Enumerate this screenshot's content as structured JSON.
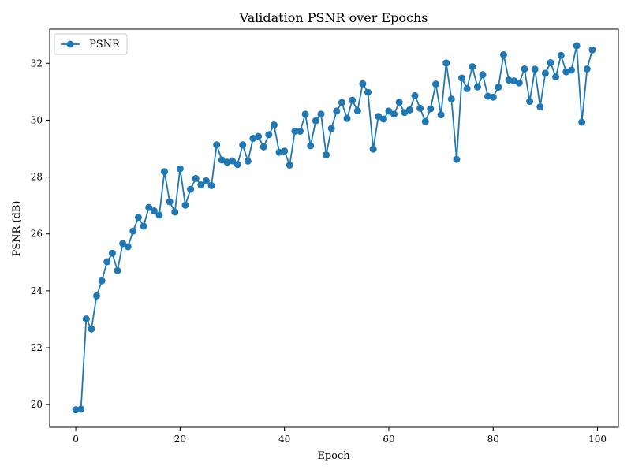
{
  "chart_data": {
    "type": "line",
    "title": "Validation PSNR over Epochs",
    "xlabel": "Epoch",
    "ylabel": "PSNR (dB)",
    "xlim": [
      -5,
      104
    ],
    "ylim": [
      19.2,
      33.2
    ],
    "xticks": [
      0,
      20,
      40,
      60,
      80,
      100
    ],
    "yticks": [
      20,
      22,
      24,
      26,
      28,
      30,
      32
    ],
    "grid": false,
    "legend_position": "top-left",
    "series": [
      {
        "name": "PSNR",
        "color": "#1f77b4",
        "marker": "circle",
        "x": [
          0,
          1,
          2,
          3,
          4,
          5,
          6,
          7,
          8,
          9,
          10,
          11,
          12,
          13,
          14,
          15,
          16,
          17,
          18,
          19,
          20,
          21,
          22,
          23,
          24,
          25,
          26,
          27,
          28,
          29,
          30,
          31,
          32,
          33,
          34,
          35,
          36,
          37,
          38,
          39,
          40,
          41,
          42,
          43,
          44,
          45,
          46,
          47,
          48,
          49,
          50,
          51,
          52,
          53,
          54,
          55,
          56,
          57,
          58,
          59,
          60,
          61,
          62,
          63,
          64,
          65,
          66,
          67,
          68,
          69,
          70,
          71,
          72,
          73,
          74,
          75,
          76,
          77,
          78,
          79,
          80,
          81,
          82,
          83,
          84,
          85,
          86,
          87,
          88,
          89,
          90,
          91,
          92,
          93,
          94,
          95,
          96,
          97,
          98,
          99
        ],
        "values": [
          19.82,
          19.84,
          23.01,
          22.66,
          23.82,
          24.35,
          25.02,
          25.32,
          24.71,
          25.66,
          25.55,
          26.1,
          26.58,
          26.27,
          26.93,
          26.81,
          26.66,
          28.19,
          27.13,
          26.77,
          28.29,
          27.01,
          27.57,
          27.95,
          27.72,
          27.87,
          27.7,
          29.13,
          28.6,
          28.52,
          28.57,
          28.44,
          29.13,
          28.56,
          29.36,
          29.43,
          29.06,
          29.49,
          29.83,
          28.87,
          28.91,
          28.42,
          29.61,
          29.61,
          30.21,
          29.1,
          29.98,
          30.21,
          28.78,
          29.71,
          30.32,
          30.62,
          30.06,
          30.7,
          30.33,
          31.28,
          30.98,
          28.98,
          30.13,
          30.04,
          30.32,
          30.21,
          30.63,
          30.27,
          30.36,
          30.86,
          30.42,
          29.95,
          30.4,
          31.27,
          30.19,
          32.01,
          30.74,
          28.62,
          31.48,
          31.11,
          31.88,
          31.17,
          31.6,
          30.84,
          30.81,
          31.16,
          32.3,
          31.41,
          31.38,
          31.31,
          31.8,
          30.66,
          31.79,
          30.47,
          31.65,
          32.02,
          31.52,
          32.28,
          31.7,
          31.76,
          32.62,
          29.93,
          31.8,
          32.47
        ]
      }
    ]
  }
}
